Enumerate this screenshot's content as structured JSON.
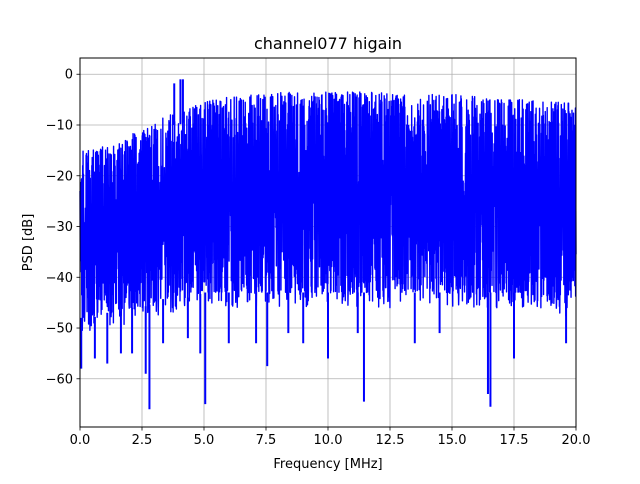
{
  "chart_data": {
    "type": "line",
    "title": "channel077 higain",
    "xlabel": "Frequency [MHz]",
    "ylabel": "PSD [dB]",
    "xlim": [
      0,
      20
    ],
    "ylim": [
      -69.5,
      3.2
    ],
    "x_ticks": [
      0,
      2.5,
      5,
      7.5,
      10,
      12.5,
      15,
      17.5,
      20
    ],
    "x_tick_labels": [
      "0.0",
      "2.5",
      "5.0",
      "7.5",
      "10.0",
      "12.5",
      "15.0",
      "17.5",
      "20.0"
    ],
    "y_ticks": [
      0,
      -10,
      -20,
      -30,
      -40,
      -50,
      -60
    ],
    "y_tick_labels": [
      "0",
      "−10",
      "−20",
      "−30",
      "−40",
      "−50",
      "−60"
    ],
    "grid": true,
    "series_color": "#0000ff",
    "series": [
      {
        "upper_envelope": {
          "x": [
            0,
            0.5,
            1,
            1.5,
            2,
            2.5,
            3,
            3.5,
            4,
            4.5,
            5,
            5.5,
            6,
            6.5,
            7,
            7.5,
            8,
            8.5,
            9,
            9.5,
            10,
            10.5,
            11,
            11.5,
            12,
            12.5,
            13,
            13.5,
            14,
            14.5,
            15,
            15.5,
            16,
            16.5,
            17,
            17.5,
            18,
            18.5,
            19,
            19.5,
            20
          ],
          "y": [
            -15,
            -15,
            -14,
            -14,
            -12,
            -11,
            -10,
            -8,
            -8,
            -6.5,
            -5.5,
            -5,
            -4.5,
            -4,
            -4,
            -3.5,
            -3.5,
            -3.5,
            -3.5,
            -3.5,
            -3.5,
            -3.5,
            -3.5,
            -3.5,
            -3.5,
            -4,
            -4,
            -4,
            -4,
            -4,
            -4,
            -4,
            -4.5,
            -4.5,
            -5,
            -5,
            -5,
            -5.5,
            -5.5,
            -5.5,
            -6
          ]
        },
        "lower_envelope": {
          "x": [
            0,
            0.5,
            1,
            1.5,
            2,
            2.5,
            3,
            3.5,
            4,
            4.5,
            5,
            5.5,
            6,
            6.5,
            7,
            7.5,
            8,
            8.5,
            9,
            9.5,
            10,
            10.5,
            11,
            11.5,
            12,
            12.5,
            13,
            13.5,
            14,
            14.5,
            15,
            15.5,
            16,
            16.5,
            17,
            17.5,
            18,
            18.5,
            19,
            19.5,
            20
          ],
          "y": [
            -48,
            -48,
            -47,
            -47,
            -46,
            -46,
            -45,
            -44,
            -44,
            -44,
            -43,
            -43,
            -43,
            -43,
            -43,
            -43,
            -43,
            -43,
            -43,
            -43,
            -43,
            -43,
            -43,
            -43,
            -43,
            -43,
            -43,
            -43,
            -43,
            -43,
            -43,
            -43,
            -43,
            -43,
            -43,
            -43,
            -43,
            -44,
            -44,
            -45,
            -45
          ]
        },
        "peaks": [
          {
            "x": 3.8,
            "y": -1.8
          },
          {
            "x": 4.05,
            "y": -1.0
          },
          {
            "x": 4.15,
            "y": -1.0
          }
        ],
        "dips": [
          {
            "x": 0.05,
            "y": -58
          },
          {
            "x": 0.6,
            "y": -56
          },
          {
            "x": 1.1,
            "y": -57
          },
          {
            "x": 1.65,
            "y": -55
          },
          {
            "x": 2.1,
            "y": -55
          },
          {
            "x": 2.65,
            "y": -59
          },
          {
            "x": 2.8,
            "y": -66
          },
          {
            "x": 3.35,
            "y": -53
          },
          {
            "x": 4.35,
            "y": -52
          },
          {
            "x": 4.85,
            "y": -55
          },
          {
            "x": 5.05,
            "y": -65
          },
          {
            "x": 6.0,
            "y": -53
          },
          {
            "x": 7.1,
            "y": -53
          },
          {
            "x": 7.55,
            "y": -57.5
          },
          {
            "x": 8.4,
            "y": -51
          },
          {
            "x": 9.0,
            "y": -53
          },
          {
            "x": 10.0,
            "y": -56
          },
          {
            "x": 11.2,
            "y": -51
          },
          {
            "x": 11.45,
            "y": -64.5
          },
          {
            "x": 13.5,
            "y": -53
          },
          {
            "x": 14.5,
            "y": -51
          },
          {
            "x": 16.45,
            "y": -63
          },
          {
            "x": 16.55,
            "y": -65.5
          },
          {
            "x": 17.5,
            "y": -56
          },
          {
            "x": 19.6,
            "y": -53
          }
        ]
      }
    ]
  }
}
